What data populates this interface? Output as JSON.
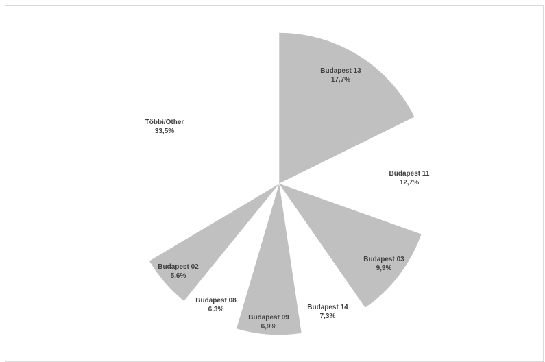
{
  "chart_data": {
    "type": "pie",
    "categories": [
      "Budapest 13",
      "Budapest 11",
      "Budapest 03",
      "Budapest 14",
      "Budapest 09",
      "Budapest 08",
      "Budapest 02",
      "Többi/Other"
    ],
    "values": [
      17.7,
      12.7,
      9.9,
      7.3,
      6.9,
      6.3,
      5.6,
      33.5
    ],
    "data_labels": [
      "17,7%",
      "12,7%",
      "9,9%",
      "7,3%",
      "6,9%",
      "6,3%",
      "5,6%",
      "33,5%"
    ],
    "slice_colors": [
      "#c0c0c0",
      "#ffffff",
      "#c0c0c0",
      "#ffffff",
      "#c0c0c0",
      "#ffffff",
      "#c0c0c0",
      "#ffffff"
    ],
    "title": "",
    "legend": "none"
  }
}
